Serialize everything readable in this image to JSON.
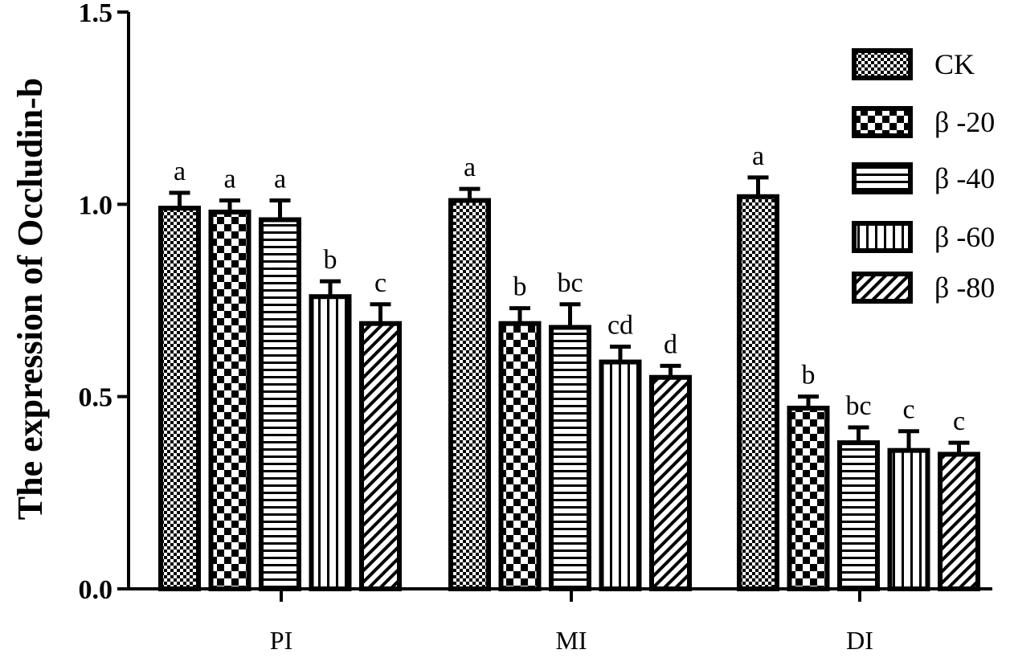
{
  "chart_data": {
    "type": "bar",
    "title": "",
    "xlabel": "",
    "ylabel": "The expression of Occludin-b",
    "ylim": [
      0,
      1.5
    ],
    "yticks": [
      "0.0",
      "0.5",
      "1.0",
      "1.5"
    ],
    "ytick_values": [
      0,
      0.5,
      1.0,
      1.5
    ],
    "categories": [
      "PI",
      "MI",
      "DI"
    ],
    "legend_position": "top-right",
    "grid": false,
    "series": [
      {
        "name": "CK",
        "pattern": "checker-fine",
        "values": [
          0.99,
          1.01,
          1.02
        ],
        "errors": [
          0.04,
          0.03,
          0.05
        ],
        "labels": [
          "a",
          "a",
          "a"
        ]
      },
      {
        "name": "β -20",
        "pattern": "checker-coarse",
        "values": [
          0.98,
          0.69,
          0.47
        ],
        "errors": [
          0.03,
          0.04,
          0.03
        ],
        "labels": [
          "a",
          "b",
          "b"
        ]
      },
      {
        "name": "β -40",
        "pattern": "horizontal-lines",
        "values": [
          0.96,
          0.68,
          0.38
        ],
        "errors": [
          0.05,
          0.06,
          0.04
        ],
        "labels": [
          "a",
          "bc",
          "bc"
        ]
      },
      {
        "name": "β -60",
        "pattern": "vertical-lines",
        "values": [
          0.76,
          0.59,
          0.36
        ],
        "errors": [
          0.04,
          0.04,
          0.05
        ],
        "labels": [
          "b",
          "cd",
          "c"
        ]
      },
      {
        "name": "β -80",
        "pattern": "diagonal-lines",
        "values": [
          0.69,
          0.55,
          0.35
        ],
        "errors": [
          0.05,
          0.03,
          0.03
        ],
        "labels": [
          "c",
          "d",
          "c"
        ]
      }
    ]
  }
}
